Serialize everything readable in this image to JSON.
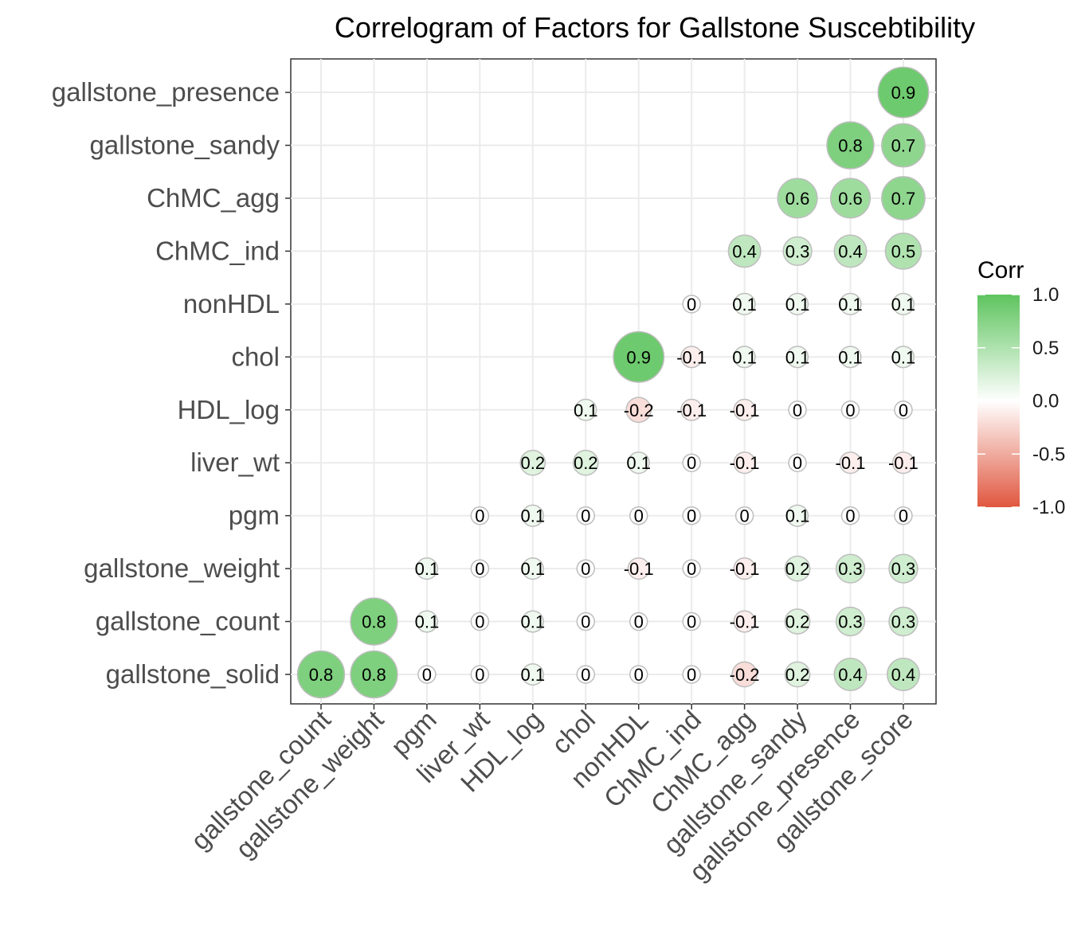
{
  "chart_data": {
    "type": "heatmap",
    "title": "Correlogram of Factors for Gallstone Suscebtibility",
    "x_categories": [
      "gallstone_count",
      "gallstone_weight",
      "pgm",
      "liver_wt",
      "HDL_log",
      "chol",
      "nonHDL",
      "ChMC_ind",
      "ChMC_agg",
      "gallstone_sandy",
      "gallstone_presence",
      "gallstone_score"
    ],
    "y_categories": [
      "gallstone_solid",
      "gallstone_count",
      "gallstone_weight",
      "pgm",
      "liver_wt",
      "HDL_log",
      "chol",
      "nonHDL",
      "ChMC_ind",
      "ChMC_agg",
      "gallstone_sandy",
      "gallstone_presence"
    ],
    "cells": [
      {
        "x": "gallstone_count",
        "y": "gallstone_solid",
        "value": 0.8,
        "label": "0.8"
      },
      {
        "x": "gallstone_weight",
        "y": "gallstone_solid",
        "value": 0.8,
        "label": "0.8"
      },
      {
        "x": "pgm",
        "y": "gallstone_solid",
        "value": 0.0,
        "label": "0"
      },
      {
        "x": "liver_wt",
        "y": "gallstone_solid",
        "value": 0.0,
        "label": "0"
      },
      {
        "x": "HDL_log",
        "y": "gallstone_solid",
        "value": 0.1,
        "label": "0.1"
      },
      {
        "x": "chol",
        "y": "gallstone_solid",
        "value": 0.0,
        "label": "0"
      },
      {
        "x": "nonHDL",
        "y": "gallstone_solid",
        "value": 0.0,
        "label": "0"
      },
      {
        "x": "ChMC_ind",
        "y": "gallstone_solid",
        "value": 0.0,
        "label": "0"
      },
      {
        "x": "ChMC_agg",
        "y": "gallstone_solid",
        "value": -0.2,
        "label": "-0.2"
      },
      {
        "x": "gallstone_sandy",
        "y": "gallstone_solid",
        "value": 0.2,
        "label": "0.2"
      },
      {
        "x": "gallstone_presence",
        "y": "gallstone_solid",
        "value": 0.4,
        "label": "0.4"
      },
      {
        "x": "gallstone_score",
        "y": "gallstone_solid",
        "value": 0.4,
        "label": "0.4"
      },
      {
        "x": "gallstone_weight",
        "y": "gallstone_count",
        "value": 0.8,
        "label": "0.8"
      },
      {
        "x": "pgm",
        "y": "gallstone_count",
        "value": 0.1,
        "label": "0.1"
      },
      {
        "x": "liver_wt",
        "y": "gallstone_count",
        "value": 0.0,
        "label": "0"
      },
      {
        "x": "HDL_log",
        "y": "gallstone_count",
        "value": 0.1,
        "label": "0.1"
      },
      {
        "x": "chol",
        "y": "gallstone_count",
        "value": 0.0,
        "label": "0"
      },
      {
        "x": "nonHDL",
        "y": "gallstone_count",
        "value": 0.0,
        "label": "0"
      },
      {
        "x": "ChMC_ind",
        "y": "gallstone_count",
        "value": 0.0,
        "label": "0"
      },
      {
        "x": "ChMC_agg",
        "y": "gallstone_count",
        "value": -0.1,
        "label": "-0.1"
      },
      {
        "x": "gallstone_sandy",
        "y": "gallstone_count",
        "value": 0.2,
        "label": "0.2"
      },
      {
        "x": "gallstone_presence",
        "y": "gallstone_count",
        "value": 0.3,
        "label": "0.3"
      },
      {
        "x": "gallstone_score",
        "y": "gallstone_count",
        "value": 0.3,
        "label": "0.3"
      },
      {
        "x": "pgm",
        "y": "gallstone_weight",
        "value": 0.1,
        "label": "0.1"
      },
      {
        "x": "liver_wt",
        "y": "gallstone_weight",
        "value": 0.0,
        "label": "0"
      },
      {
        "x": "HDL_log",
        "y": "gallstone_weight",
        "value": 0.1,
        "label": "0.1"
      },
      {
        "x": "chol",
        "y": "gallstone_weight",
        "value": 0.0,
        "label": "0"
      },
      {
        "x": "nonHDL",
        "y": "gallstone_weight",
        "value": -0.1,
        "label": "-0.1"
      },
      {
        "x": "ChMC_ind",
        "y": "gallstone_weight",
        "value": 0.0,
        "label": "0"
      },
      {
        "x": "ChMC_agg",
        "y": "gallstone_weight",
        "value": -0.1,
        "label": "-0.1"
      },
      {
        "x": "gallstone_sandy",
        "y": "gallstone_weight",
        "value": 0.2,
        "label": "0.2"
      },
      {
        "x": "gallstone_presence",
        "y": "gallstone_weight",
        "value": 0.3,
        "label": "0.3"
      },
      {
        "x": "gallstone_score",
        "y": "gallstone_weight",
        "value": 0.3,
        "label": "0.3"
      },
      {
        "x": "liver_wt",
        "y": "pgm",
        "value": 0.0,
        "label": "0"
      },
      {
        "x": "HDL_log",
        "y": "pgm",
        "value": 0.1,
        "label": "0.1"
      },
      {
        "x": "chol",
        "y": "pgm",
        "value": 0.0,
        "label": "0"
      },
      {
        "x": "nonHDL",
        "y": "pgm",
        "value": 0.0,
        "label": "0"
      },
      {
        "x": "ChMC_ind",
        "y": "pgm",
        "value": 0.0,
        "label": "0"
      },
      {
        "x": "ChMC_agg",
        "y": "pgm",
        "value": 0.0,
        "label": "0"
      },
      {
        "x": "gallstone_sandy",
        "y": "pgm",
        "value": 0.1,
        "label": "0.1"
      },
      {
        "x": "gallstone_presence",
        "y": "pgm",
        "value": 0.0,
        "label": "0"
      },
      {
        "x": "gallstone_score",
        "y": "pgm",
        "value": 0.0,
        "label": "0"
      },
      {
        "x": "HDL_log",
        "y": "liver_wt",
        "value": 0.2,
        "label": "0.2"
      },
      {
        "x": "chol",
        "y": "liver_wt",
        "value": 0.2,
        "label": "0.2"
      },
      {
        "x": "nonHDL",
        "y": "liver_wt",
        "value": 0.1,
        "label": "0.1"
      },
      {
        "x": "ChMC_ind",
        "y": "liver_wt",
        "value": 0.0,
        "label": "0"
      },
      {
        "x": "ChMC_agg",
        "y": "liver_wt",
        "value": -0.1,
        "label": "-0.1"
      },
      {
        "x": "gallstone_sandy",
        "y": "liver_wt",
        "value": 0.0,
        "label": "0"
      },
      {
        "x": "gallstone_presence",
        "y": "liver_wt",
        "value": -0.1,
        "label": "-0.1"
      },
      {
        "x": "gallstone_score",
        "y": "liver_wt",
        "value": -0.1,
        "label": "-0.1"
      },
      {
        "x": "chol",
        "y": "HDL_log",
        "value": 0.1,
        "label": "0.1"
      },
      {
        "x": "nonHDL",
        "y": "HDL_log",
        "value": -0.2,
        "label": "-0.2"
      },
      {
        "x": "ChMC_ind",
        "y": "HDL_log",
        "value": -0.1,
        "label": "-0.1"
      },
      {
        "x": "ChMC_agg",
        "y": "HDL_log",
        "value": -0.1,
        "label": "-0.1"
      },
      {
        "x": "gallstone_sandy",
        "y": "HDL_log",
        "value": 0.0,
        "label": "0"
      },
      {
        "x": "gallstone_presence",
        "y": "HDL_log",
        "value": 0.0,
        "label": "0"
      },
      {
        "x": "gallstone_score",
        "y": "HDL_log",
        "value": 0.0,
        "label": "0"
      },
      {
        "x": "nonHDL",
        "y": "chol",
        "value": 0.9,
        "label": "0.9"
      },
      {
        "x": "ChMC_ind",
        "y": "chol",
        "value": -0.1,
        "label": "-0.1"
      },
      {
        "x": "ChMC_agg",
        "y": "chol",
        "value": 0.1,
        "label": "0.1"
      },
      {
        "x": "gallstone_sandy",
        "y": "chol",
        "value": 0.1,
        "label": "0.1"
      },
      {
        "x": "gallstone_presence",
        "y": "chol",
        "value": 0.1,
        "label": "0.1"
      },
      {
        "x": "gallstone_score",
        "y": "chol",
        "value": 0.1,
        "label": "0.1"
      },
      {
        "x": "ChMC_ind",
        "y": "nonHDL",
        "value": 0.0,
        "label": "0"
      },
      {
        "x": "ChMC_agg",
        "y": "nonHDL",
        "value": 0.1,
        "label": "0.1"
      },
      {
        "x": "gallstone_sandy",
        "y": "nonHDL",
        "value": 0.1,
        "label": "0.1"
      },
      {
        "x": "gallstone_presence",
        "y": "nonHDL",
        "value": 0.1,
        "label": "0.1"
      },
      {
        "x": "gallstone_score",
        "y": "nonHDL",
        "value": 0.1,
        "label": "0.1"
      },
      {
        "x": "ChMC_agg",
        "y": "ChMC_ind",
        "value": 0.4,
        "label": "0.4"
      },
      {
        "x": "gallstone_sandy",
        "y": "ChMC_ind",
        "value": 0.3,
        "label": "0.3"
      },
      {
        "x": "gallstone_presence",
        "y": "ChMC_ind",
        "value": 0.4,
        "label": "0.4"
      },
      {
        "x": "gallstone_score",
        "y": "ChMC_ind",
        "value": 0.5,
        "label": "0.5"
      },
      {
        "x": "gallstone_sandy",
        "y": "ChMC_agg",
        "value": 0.6,
        "label": "0.6"
      },
      {
        "x": "gallstone_presence",
        "y": "ChMC_agg",
        "value": 0.6,
        "label": "0.6"
      },
      {
        "x": "gallstone_score",
        "y": "ChMC_agg",
        "value": 0.7,
        "label": "0.7"
      },
      {
        "x": "gallstone_presence",
        "y": "gallstone_sandy",
        "value": 0.8,
        "label": "0.8"
      },
      {
        "x": "gallstone_score",
        "y": "gallstone_sandy",
        "value": 0.7,
        "label": "0.7"
      },
      {
        "x": "gallstone_score",
        "y": "gallstone_presence",
        "value": 0.9,
        "label": "0.9"
      }
    ],
    "legend": {
      "title": "Corr",
      "ticks": [
        "1.0",
        "0.5",
        "0.0",
        "-0.5",
        "-1.0"
      ],
      "range": [
        -1.0,
        1.0
      ],
      "placement": "right"
    },
    "grid": true,
    "colors": {
      "high": "#5ec45e",
      "mid": "#ffffff",
      "low": "#e0573f"
    }
  }
}
